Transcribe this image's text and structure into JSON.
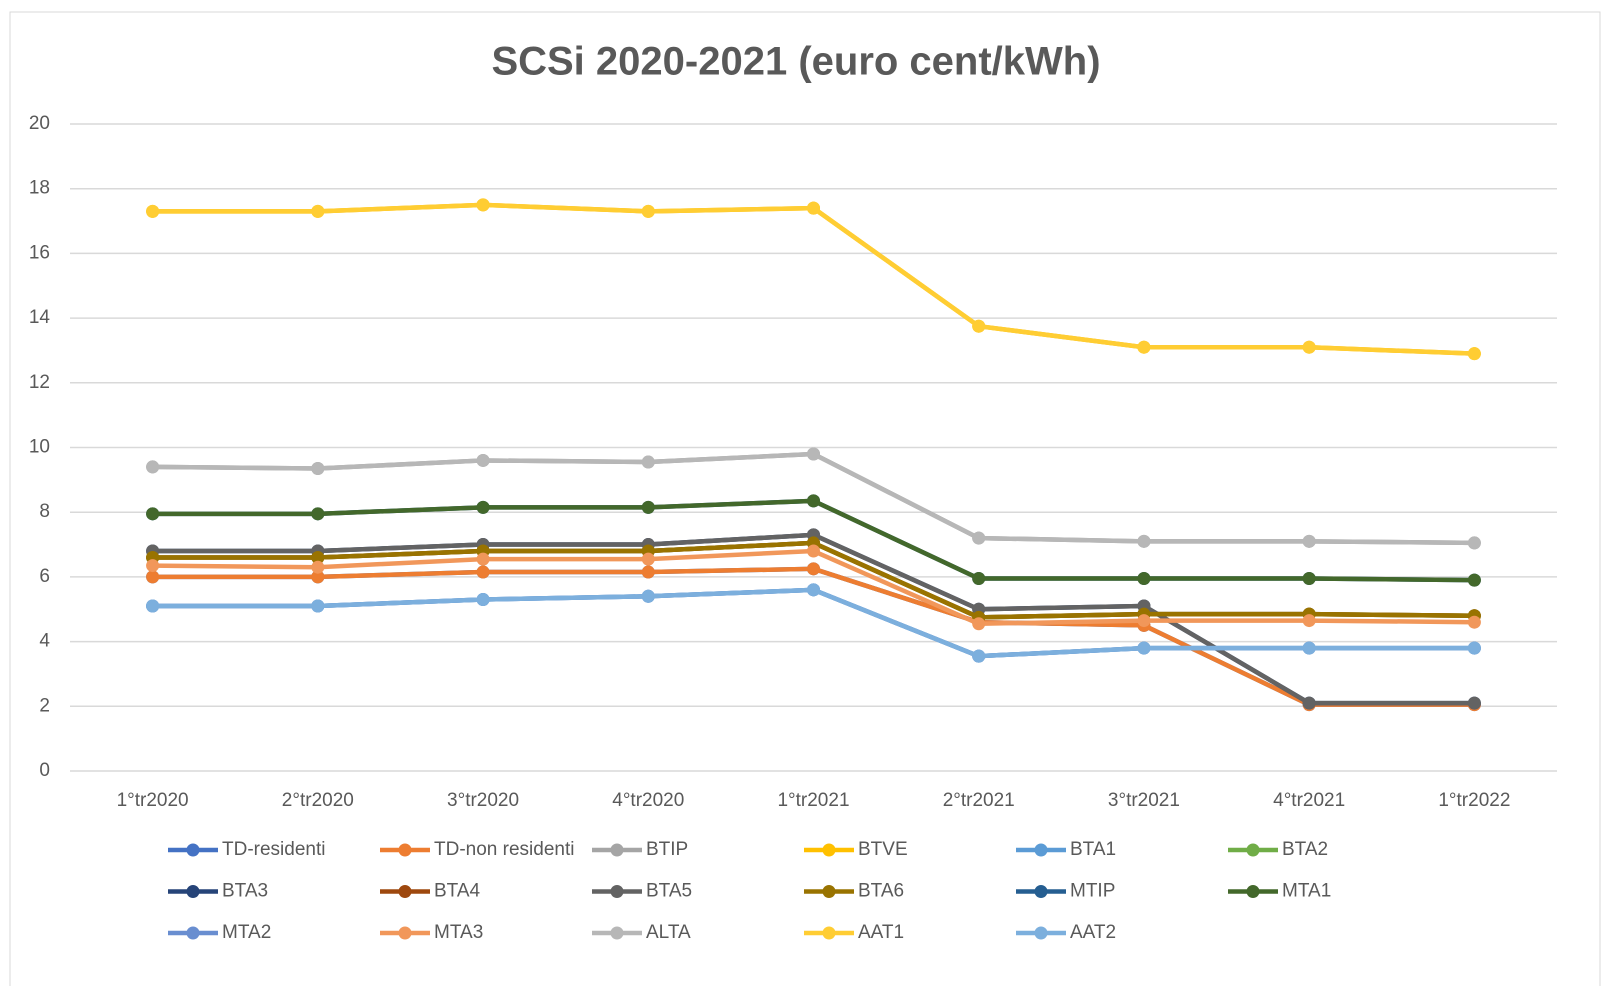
{
  "chart_data": {
    "type": "line",
    "title": "SCSi 2020-2021 (euro cent/kWh)",
    "categories": [
      "1°tr2020",
      "2°tr2020",
      "3°tr2020",
      "4°tr2020",
      "1°tr2021",
      "2°tr2021",
      "3°tr2021",
      "4°tr2021",
      "1°tr2022"
    ],
    "ylim": [
      0,
      20
    ],
    "yticks": [
      0,
      2,
      4,
      6,
      8,
      10,
      12,
      14,
      16,
      18,
      20
    ],
    "grid": true,
    "series": [
      {
        "name": "TD-residenti",
        "color": "#4472c4",
        "values": [
          6.0,
          6.0,
          6.15,
          6.15,
          6.25,
          4.6,
          4.5,
          2.05,
          2.05
        ]
      },
      {
        "name": "TD-non residenti",
        "color": "#ed7d31",
        "values": [
          6.0,
          6.0,
          6.15,
          6.15,
          6.25,
          4.6,
          4.5,
          2.05,
          2.05
        ]
      },
      {
        "name": "BTIP",
        "color": "#a5a5a5",
        "values": [
          9.4,
          9.35,
          9.6,
          9.55,
          9.8,
          7.2,
          7.1,
          7.1,
          7.05
        ]
      },
      {
        "name": "BTVE",
        "color": "#ffc000",
        "values": [
          17.3,
          17.3,
          17.5,
          17.3,
          17.4,
          13.75,
          13.1,
          13.1,
          12.9
        ]
      },
      {
        "name": "BTA1",
        "color": "#5b9bd5",
        "values": [
          5.1,
          5.1,
          5.3,
          5.4,
          5.6,
          3.55,
          3.8,
          3.8,
          3.8
        ]
      },
      {
        "name": "BTA2",
        "color": "#70ad47",
        "values": [
          6.6,
          6.6,
          6.8,
          6.8,
          7.05,
          4.75,
          4.85,
          4.85,
          4.8
        ]
      },
      {
        "name": "BTA3",
        "color": "#264478",
        "values": [
          6.8,
          6.8,
          7.0,
          7.0,
          7.3,
          5.0,
          5.1,
          2.1,
          2.1
        ]
      },
      {
        "name": "BTA4",
        "color": "#9e480e",
        "values": [
          6.6,
          6.6,
          6.8,
          6.8,
          7.05,
          4.75,
          4.85,
          4.85,
          4.8
        ]
      },
      {
        "name": "BTA5",
        "color": "#636363",
        "values": [
          6.8,
          6.8,
          7.0,
          7.0,
          7.3,
          5.0,
          5.1,
          2.1,
          2.1
        ]
      },
      {
        "name": "BTA6",
        "color": "#997300",
        "values": [
          6.6,
          6.6,
          6.8,
          6.8,
          7.05,
          4.75,
          4.85,
          4.85,
          4.8
        ]
      },
      {
        "name": "MTIP",
        "color": "#255e91",
        "values": [
          7.95,
          7.95,
          8.15,
          8.15,
          8.35,
          5.95,
          5.95,
          5.95,
          5.9
        ]
      },
      {
        "name": "MTA1",
        "color": "#43682b",
        "values": [
          7.95,
          7.95,
          8.15,
          8.15,
          8.35,
          5.95,
          5.95,
          5.95,
          5.9
        ]
      },
      {
        "name": "MTA2",
        "color": "#698ed0",
        "values": [
          5.1,
          5.1,
          5.3,
          5.4,
          5.6,
          3.55,
          3.8,
          3.8,
          3.8
        ]
      },
      {
        "name": "MTA3",
        "color": "#f1975a",
        "values": [
          6.35,
          6.3,
          6.55,
          6.55,
          6.8,
          4.55,
          4.65,
          4.65,
          4.6
        ]
      },
      {
        "name": "ALTA",
        "color": "#b7b7b7",
        "values": [
          9.4,
          9.35,
          9.6,
          9.55,
          9.8,
          7.2,
          7.1,
          7.1,
          7.05
        ]
      },
      {
        "name": "AAT1",
        "color": "#ffcd33",
        "values": [
          17.3,
          17.3,
          17.5,
          17.3,
          17.4,
          13.75,
          13.1,
          13.1,
          12.9
        ]
      },
      {
        "name": "AAT2",
        "color": "#7cafdd",
        "values": [
          5.1,
          5.1,
          5.3,
          5.4,
          5.6,
          3.55,
          3.8,
          3.8,
          3.8
        ]
      }
    ]
  }
}
